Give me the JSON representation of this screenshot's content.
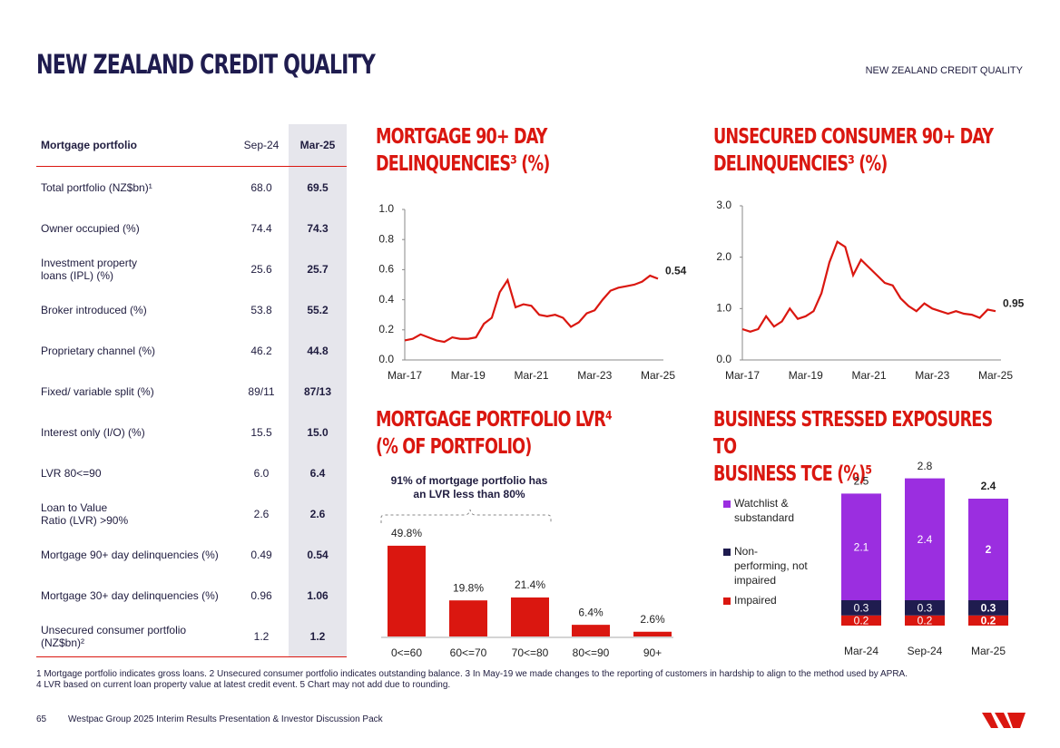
{
  "header": {
    "title": "NEW ZEALAND CREDIT QUALITY",
    "section": "NEW ZEALAND CREDIT QUALITY"
  },
  "table": {
    "header": [
      "Mortgage portfolio",
      "Sep-24",
      "Mar-25"
    ],
    "rows": [
      [
        "Total portfolio (NZ$bn)¹",
        "68.0",
        "69.5"
      ],
      [
        "Owner occupied (%)",
        "74.4",
        "74.3"
      ],
      [
        "Investment property\nloans (IPL) (%)",
        "25.6",
        "25.7"
      ],
      [
        "Broker introduced (%)",
        "53.8",
        "55.2"
      ],
      [
        "Proprietary channel (%)",
        "46.2",
        "44.8"
      ],
      [
        "Fixed/ variable split (%)",
        "89/11",
        "87/13"
      ],
      [
        "Interest only (I/O) (%)",
        "15.5",
        "15.0"
      ],
      [
        "LVR 80<=90",
        "6.0",
        "6.4"
      ],
      [
        "Loan to Value\nRatio (LVR) >90%",
        "2.6",
        "2.6"
      ],
      [
        "Mortgage 90+ day delinquencies (%)",
        "0.49",
        "0.54"
      ],
      [
        "Mortgage 30+ day delinquencies (%)",
        "0.96",
        "1.06"
      ],
      [
        "Unsecured consumer portfolio\n(NZ$bn)²",
        "1.2",
        "1.2"
      ]
    ]
  },
  "chart_data": [
    {
      "type": "line",
      "title": "MORTGAGE 90+ DAY\nDELINQUENCIES³ (%)",
      "color": "#da1710",
      "categories": [
        "Mar-17",
        null,
        null,
        null,
        null,
        null,
        null,
        null,
        "Mar-19",
        null,
        null,
        null,
        null,
        null,
        null,
        null,
        "Mar-21",
        null,
        null,
        null,
        null,
        null,
        null,
        null,
        "Mar-23",
        null,
        null,
        null,
        null,
        null,
        null,
        null,
        "Mar-25"
      ],
      "values": [
        0.13,
        0.14,
        0.17,
        0.15,
        0.13,
        0.12,
        0.15,
        0.14,
        0.14,
        0.15,
        0.24,
        0.28,
        0.45,
        0.53,
        0.35,
        0.37,
        0.36,
        0.3,
        0.29,
        0.3,
        0.28,
        0.22,
        0.25,
        0.31,
        0.33,
        0.4,
        0.46,
        0.48,
        0.49,
        0.5,
        0.52,
        0.56,
        0.54
      ],
      "ylim": [
        0,
        1
      ],
      "yticks": [
        {
          "value": 0,
          "label": "0.0"
        },
        0.2,
        0.4,
        0.6,
        0.8,
        {
          "value": 1,
          "label": "1.0"
        }
      ]
    },
    {
      "type": "line",
      "title": "UNSECURED CONSUMER 90+ DAY\nDELINQUENCIES³ (%)",
      "color": "#da1710",
      "categories": [
        "Mar-17",
        null,
        null,
        null,
        null,
        null,
        null,
        null,
        "Mar-19",
        null,
        null,
        null,
        null,
        null,
        null,
        null,
        "Mar-21",
        null,
        null,
        null,
        null,
        null,
        null,
        null,
        "Mar-23",
        null,
        null,
        null,
        null,
        null,
        null,
        null,
        "Mar-25"
      ],
      "values": [
        0.6,
        0.55,
        0.6,
        0.85,
        0.65,
        0.75,
        1.0,
        0.8,
        0.85,
        0.95,
        1.3,
        1.9,
        2.3,
        2.2,
        1.65,
        1.95,
        1.8,
        1.65,
        1.5,
        1.45,
        1.2,
        1.05,
        0.95,
        1.1,
        1.0,
        0.95,
        0.9,
        0.95,
        0.9,
        0.88,
        0.82,
        0.98,
        0.95
      ],
      "ylim": [
        0,
        3
      ],
      "yticks": [
        {
          "value": 0,
          "label": "0.0"
        },
        {
          "value": 1,
          "label": "1.0"
        },
        {
          "value": 2,
          "label": "2.0"
        },
        {
          "value": 3,
          "label": "3.0"
        }
      ]
    },
    {
      "type": "bar",
      "title": "MORTGAGE PORTFOLIO LVR⁴\n(% OF PORTFOLIO)",
      "color": "#da1710",
      "annotation": "91% of mortgage portfolio has\nan LVR less than 80%",
      "categories": [
        "0<=60",
        "60<=70",
        "70<=80",
        "80<=90",
        "90+"
      ],
      "values": [
        49.8,
        19.8,
        21.4,
        6.4,
        2.6
      ],
      "value_labels": [
        "49.8%",
        "19.8%",
        "21.4%",
        "6.4%",
        "2.6%"
      ]
    },
    {
      "type": "stacked_bar",
      "title": "BUSINESS STRESSED EXPOSURES TO\nBUSINESS TCE (%)⁵",
      "categories": [
        "Mar-24",
        "Sep-24",
        "Mar-25"
      ],
      "series": [
        {
          "name": "Impaired",
          "color": "#da1710",
          "values": [
            0.2,
            0.2,
            0.2
          ]
        },
        {
          "name": "Non-\nperforming, not\nimpaired",
          "color": "#1f1c4f",
          "values": [
            0.3,
            0.3,
            0.3
          ]
        },
        {
          "name": "Watchlist &\nsubstandard",
          "color": "#9b2ee0",
          "values": [
            2.1,
            2.4,
            2.0
          ]
        }
      ],
      "totals": [
        2.5,
        2.8,
        2.4
      ]
    }
  ],
  "footnotes": "1 Mortgage portfolio indicates gross loans. 2 Unsecured consumer portfolio indicates outstanding balance. 3 In May-19 we made changes to the reporting of customers in hardship to align to the method used by APRA.\n4 LVR based on current loan property value at latest credit event. 5 Chart may not add due to rounding.",
  "footer": {
    "page": "65",
    "text": "Westpac Group 2025 Interim Results Presentation & Investor Discussion Pack"
  }
}
